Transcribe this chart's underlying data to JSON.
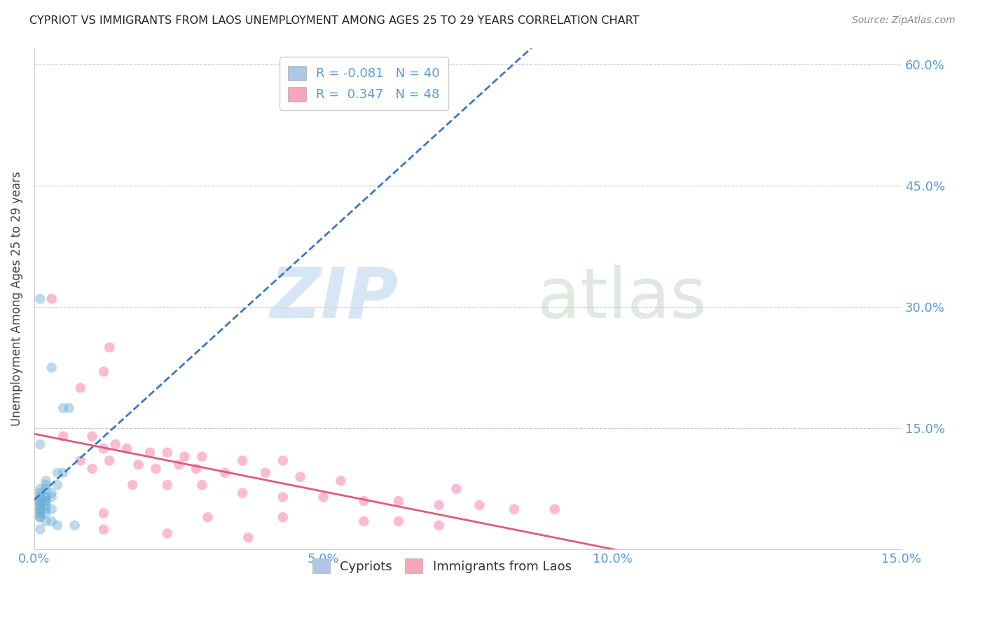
{
  "title": "CYPRIOT VS IMMIGRANTS FROM LAOS UNEMPLOYMENT AMONG AGES 25 TO 29 YEARS CORRELATION CHART",
  "source": "Source: ZipAtlas.com",
  "ylabel_label": "Unemployment Among Ages 25 to 29 years",
  "cypriot_color": "#6baed6",
  "laos_color": "#f768a1",
  "cypriot_line_color": "#3a7abf",
  "laos_line_color": "#e05a7a",
  "grid_color": "#c8c8d0",
  "background_color": "#ffffff",
  "cypriot_points": [
    [
      0.001,
      0.31
    ],
    [
      0.003,
      0.225
    ],
    [
      0.005,
      0.175
    ],
    [
      0.006,
      0.175
    ],
    [
      0.001,
      0.13
    ],
    [
      0.004,
      0.095
    ],
    [
      0.005,
      0.095
    ],
    [
      0.002,
      0.085
    ],
    [
      0.002,
      0.08
    ],
    [
      0.004,
      0.08
    ],
    [
      0.001,
      0.075
    ],
    [
      0.002,
      0.075
    ],
    [
      0.001,
      0.07
    ],
    [
      0.003,
      0.07
    ],
    [
      0.001,
      0.065
    ],
    [
      0.001,
      0.065
    ],
    [
      0.002,
      0.065
    ],
    [
      0.002,
      0.065
    ],
    [
      0.003,
      0.065
    ],
    [
      0.001,
      0.06
    ],
    [
      0.001,
      0.06
    ],
    [
      0.002,
      0.06
    ],
    [
      0.002,
      0.06
    ],
    [
      0.001,
      0.055
    ],
    [
      0.001,
      0.055
    ],
    [
      0.002,
      0.055
    ],
    [
      0.001,
      0.05
    ],
    [
      0.001,
      0.05
    ],
    [
      0.002,
      0.05
    ],
    [
      0.003,
      0.05
    ],
    [
      0.001,
      0.045
    ],
    [
      0.001,
      0.045
    ],
    [
      0.002,
      0.045
    ],
    [
      0.001,
      0.04
    ],
    [
      0.001,
      0.04
    ],
    [
      0.002,
      0.035
    ],
    [
      0.003,
      0.035
    ],
    [
      0.004,
      0.03
    ],
    [
      0.007,
      0.03
    ],
    [
      0.001,
      0.025
    ]
  ],
  "laos_points": [
    [
      0.003,
      0.31
    ],
    [
      0.013,
      0.25
    ],
    [
      0.012,
      0.22
    ],
    [
      0.008,
      0.2
    ],
    [
      0.005,
      0.14
    ],
    [
      0.01,
      0.14
    ],
    [
      0.014,
      0.13
    ],
    [
      0.012,
      0.125
    ],
    [
      0.016,
      0.125
    ],
    [
      0.02,
      0.12
    ],
    [
      0.023,
      0.12
    ],
    [
      0.026,
      0.115
    ],
    [
      0.029,
      0.115
    ],
    [
      0.008,
      0.11
    ],
    [
      0.013,
      0.11
    ],
    [
      0.036,
      0.11
    ],
    [
      0.043,
      0.11
    ],
    [
      0.018,
      0.105
    ],
    [
      0.025,
      0.105
    ],
    [
      0.01,
      0.1
    ],
    [
      0.021,
      0.1
    ],
    [
      0.028,
      0.1
    ],
    [
      0.033,
      0.095
    ],
    [
      0.04,
      0.095
    ],
    [
      0.046,
      0.09
    ],
    [
      0.053,
      0.085
    ],
    [
      0.017,
      0.08
    ],
    [
      0.023,
      0.08
    ],
    [
      0.029,
      0.08
    ],
    [
      0.073,
      0.075
    ],
    [
      0.036,
      0.07
    ],
    [
      0.043,
      0.065
    ],
    [
      0.05,
      0.065
    ],
    [
      0.057,
      0.06
    ],
    [
      0.063,
      0.06
    ],
    [
      0.07,
      0.055
    ],
    [
      0.077,
      0.055
    ],
    [
      0.083,
      0.05
    ],
    [
      0.09,
      0.05
    ],
    [
      0.012,
      0.045
    ],
    [
      0.03,
      0.04
    ],
    [
      0.043,
      0.04
    ],
    [
      0.057,
      0.035
    ],
    [
      0.063,
      0.035
    ],
    [
      0.07,
      0.03
    ],
    [
      0.012,
      0.025
    ],
    [
      0.023,
      0.02
    ],
    [
      0.037,
      0.015
    ]
  ],
  "xlim": [
    0.0,
    0.15
  ],
  "ylim": [
    0.0,
    0.62
  ],
  "xtick_positions": [
    0.0,
    0.05,
    0.1,
    0.15
  ],
  "xtick_labels": [
    "0.0%",
    "5.0%",
    "10.0%",
    "15.0%"
  ],
  "ytick_positions": [
    0.0,
    0.15,
    0.3,
    0.45,
    0.6
  ],
  "ytick_labels": [
    "",
    "15.0%",
    "30.0%",
    "45.0%",
    "60.0%"
  ],
  "right_ytick_labels": [
    "60.0%",
    "45.0%",
    "30.0%",
    "15.0%"
  ],
  "legend_label1": "R = -0.081   N = 40",
  "legend_label2": "R =  0.347   N = 48",
  "legend_color1": "#aec6e8",
  "legend_color2": "#f4a7b9",
  "bottom_label1": "Cypriots",
  "bottom_label2": "Immigrants from Laos",
  "tick_color": "#5b9bd5",
  "title_color": "#222222",
  "source_color": "#888888",
  "legend_text_color": "#5b9bd5"
}
